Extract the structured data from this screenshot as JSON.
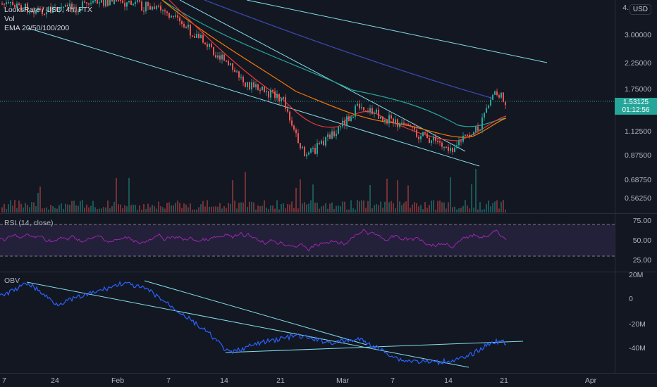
{
  "legend": {
    "symbol": "LooksRare / USD, 4h, FTX",
    "vol": "Vol",
    "ema": "EMA 20/50/100/200"
  },
  "currency_button": "USD",
  "last_price": {
    "value": "1.53125",
    "countdown": "01:12:56",
    "color": "#26a69a"
  },
  "price_axis": [
    "4.",
    "3.00000",
    "2.25000",
    "1.75000",
    "1.12500",
    "0.87500",
    "0.68750",
    "0.56250"
  ],
  "rsi_pane": {
    "title": "RSI (14, close)",
    "levels": [
      "75.00",
      "50.00",
      "25.00"
    ],
    "color": "#9c27b0"
  },
  "obv_pane": {
    "title": "OBV",
    "levels": [
      "20M",
      "0",
      "-20M",
      "-40M"
    ],
    "color": "#2962ff"
  },
  "time_axis": [
    "7",
    "24",
    "Feb",
    "7",
    "14",
    "21",
    "Mar",
    "7",
    "14",
    "21",
    "Apr"
  ],
  "colors": {
    "background": "#131722",
    "candle_up": "#26a69a",
    "candle_down": "#ef5350",
    "trendline": "#80deea",
    "ema20": "#e53935",
    "ema50": "#f57c00",
    "ema100": "#26a69a",
    "ema200": "#3949ab"
  }
}
